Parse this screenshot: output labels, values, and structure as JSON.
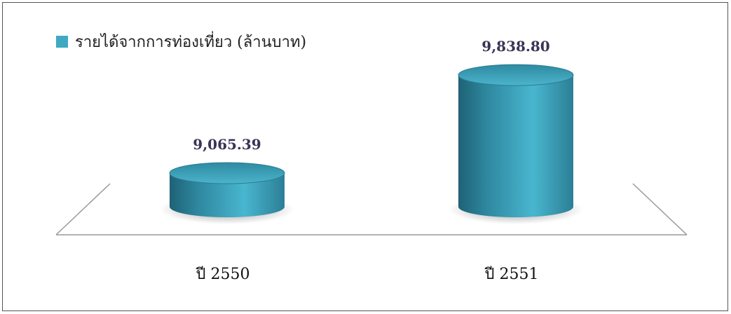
{
  "chart_data": {
    "type": "bar",
    "style": "3d-cylinder",
    "categories": [
      "ปี 2550",
      "ปี 2551"
    ],
    "series": [
      {
        "name": "รายได้จากการท่องเที่ยว (ล้านบาท)",
        "values": [
          9065.39,
          9838.8
        ],
        "value_labels": [
          "9,065.39",
          "9,838.80"
        ],
        "color": "#3fa9c2"
      }
    ],
    "ylim": [
      8800,
      9900
    ],
    "legend": "top-left",
    "grid": false
  }
}
